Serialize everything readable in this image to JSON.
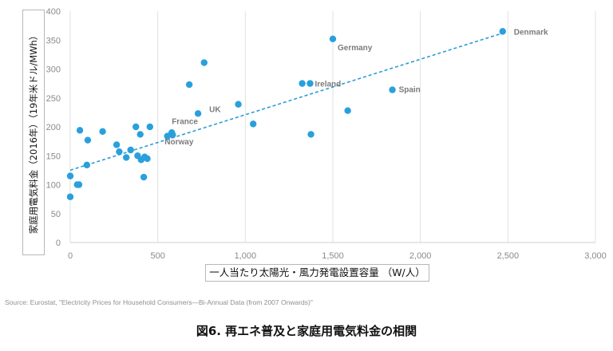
{
  "chart_data": {
    "type": "scatter",
    "ylabel": "家庭用電気料金（2016年）（19年米ドル/MWh）",
    "xlabel": "一人当たり太陽光・風力発電設置容量 （W/人）",
    "xlim": [
      0,
      3000
    ],
    "ylim": [
      0,
      400
    ],
    "xticks": [
      0,
      500,
      1000,
      1500,
      2000,
      2500,
      3000
    ],
    "xtick_labels": [
      "0",
      "500",
      "1,000",
      "1,500",
      "2,000",
      "2,500",
      "3,000"
    ],
    "yticks": [
      0,
      50,
      100,
      150,
      200,
      250,
      300,
      350,
      400
    ],
    "ytick_labels": [
      "0",
      "50",
      "100",
      "150",
      "200",
      "250",
      "300",
      "350",
      "400"
    ],
    "grid": "vertical",
    "trendline": {
      "style": "dashed",
      "from": [
        0,
        125
      ],
      "to": [
        2470,
        362
      ]
    },
    "points": [
      {
        "x": 0,
        "y": 115
      },
      {
        "x": 0,
        "y": 79
      },
      {
        "x": 40,
        "y": 100
      },
      {
        "x": 50,
        "y": 100
      },
      {
        "x": 55,
        "y": 194
      },
      {
        "x": 95,
        "y": 134
      },
      {
        "x": 100,
        "y": 177
      },
      {
        "x": 185,
        "y": 192
      },
      {
        "x": 265,
        "y": 169
      },
      {
        "x": 280,
        "y": 157
      },
      {
        "x": 320,
        "y": 147
      },
      {
        "x": 345,
        "y": 160
      },
      {
        "x": 375,
        "y": 200
      },
      {
        "x": 385,
        "y": 150
      },
      {
        "x": 400,
        "y": 187
      },
      {
        "x": 405,
        "y": 143
      },
      {
        "x": 420,
        "y": 113
      },
      {
        "x": 425,
        "y": 148
      },
      {
        "x": 440,
        "y": 145
      },
      {
        "x": 455,
        "y": 200
      },
      {
        "x": 555,
        "y": 184
      },
      {
        "x": 580,
        "y": 190,
        "label": "France"
      },
      {
        "x": 585,
        "y": 186,
        "label": "Norway"
      },
      {
        "x": 680,
        "y": 273
      },
      {
        "x": 730,
        "y": 223,
        "label": "UK"
      },
      {
        "x": 765,
        "y": 311
      },
      {
        "x": 960,
        "y": 239
      },
      {
        "x": 1045,
        "y": 205
      },
      {
        "x": 1325,
        "y": 275
      },
      {
        "x": 1370,
        "y": 275,
        "label": "Ireland"
      },
      {
        "x": 1375,
        "y": 187
      },
      {
        "x": 1500,
        "y": 352,
        "label": "Germany"
      },
      {
        "x": 1585,
        "y": 228
      },
      {
        "x": 1840,
        "y": 264,
        "label": "Spain"
      },
      {
        "x": 2470,
        "y": 365,
        "label": "Denmark"
      }
    ],
    "point_color": "#29a0dc",
    "trend_color": "#2a9bd8"
  },
  "source": "Source: Eurostat, \"Electricity Prices for Household Consumers—Bi-Annual Data (from 2007 Onwards)\"",
  "caption": "図6. 再エネ普及と家庭用電気料金の相関"
}
